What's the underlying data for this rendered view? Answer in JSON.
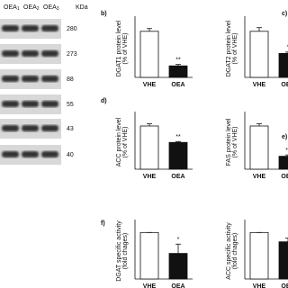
{
  "blot": {
    "lanes": [
      {
        "name": "OEA",
        "sub": "1"
      },
      {
        "name": "OEA",
        "sub": "2"
      },
      {
        "name": "OEA",
        "sub": "3"
      }
    ],
    "unit": "KDa",
    "weights": [
      280,
      273,
      88,
      55,
      43,
      40
    ]
  },
  "chart_data": [
    {
      "type": "bar",
      "panel": "b)",
      "ylabel": [
        "DGAT1 protein level",
        "(% of VHE)"
      ],
      "categories": [
        "VHE",
        "OEA"
      ],
      "values": [
        100,
        25
      ],
      "errors": [
        6,
        3
      ],
      "significance": [
        null,
        "**"
      ],
      "colors": [
        "#ffffff",
        "#111111"
      ],
      "ylim": [
        0,
        125
      ]
    },
    {
      "type": "bar",
      "panel": "c)",
      "ylabel": [
        "DGAT2 protein level",
        "(% of VHE)"
      ],
      "categories": [
        "VHE",
        "OEA"
      ],
      "values": [
        100,
        52
      ],
      "errors": [
        8,
        3
      ],
      "significance": [
        null,
        "*"
      ],
      "colors": [
        "#ffffff",
        "#111111"
      ],
      "ylim": [
        0,
        125
      ]
    },
    {
      "type": "bar",
      "panel": "d)",
      "ylabel": [
        "ACC protein level",
        "(% of VHE)"
      ],
      "categories": [
        "VHE",
        "OEA"
      ],
      "values": [
        100,
        62
      ],
      "errors": [
        5,
        2
      ],
      "significance": [
        null,
        "**"
      ],
      "colors": [
        "#ffffff",
        "#111111"
      ],
      "ylim": [
        0,
        125
      ]
    },
    {
      "type": "bar",
      "panel": "e)",
      "ylabel": [
        "FAS protein level",
        "(% of VHE)"
      ],
      "categories": [
        "VHE",
        "OEA"
      ],
      "values": [
        100,
        30
      ],
      "errors": [
        5,
        3
      ],
      "significance": [
        null,
        "**"
      ],
      "colors": [
        "#ffffff",
        "#111111"
      ],
      "ylim": [
        0,
        125
      ]
    },
    {
      "type": "bar",
      "panel": "f)",
      "ylabel": [
        "DGAT specific activity",
        "(fold chages)"
      ],
      "categories": [
        "VHE",
        "OEA"
      ],
      "values": [
        1,
        0.55
      ],
      "errors": [
        0,
        0.2
      ],
      "significance": [
        null,
        "*"
      ],
      "colors": [
        "#ffffff",
        "#111111"
      ],
      "ylim": [
        0,
        1.2
      ]
    },
    {
      "type": "bar",
      "ylabel": [
        "ACC specific activity",
        "(fold chages)"
      ],
      "categories": [
        "VHE",
        "OEA"
      ],
      "values": [
        1,
        0.8
      ],
      "errors": [
        0,
        0.08
      ],
      "significance": [
        null,
        null
      ],
      "colors": [
        "#ffffff",
        "#111111"
      ],
      "ylim": [
        0,
        1.2
      ]
    }
  ]
}
